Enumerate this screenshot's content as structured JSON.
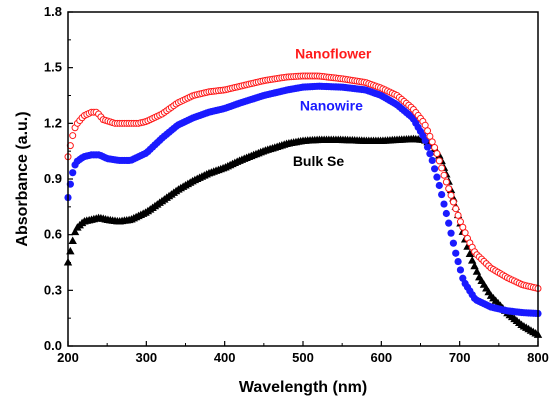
{
  "chart_data": {
    "type": "scatter",
    "title": "",
    "xlabel": "Wavelength (nm)",
    "ylabel": "Absorbance (a.u.)",
    "xlim": [
      200,
      800
    ],
    "ylim": [
      0.0,
      1.8
    ],
    "xticks": [
      "200",
      "300",
      "400",
      "500",
      "600",
      "700",
      "800"
    ],
    "yticks": [
      "0.0",
      "0.3",
      "0.6",
      "0.9",
      "1.2",
      "1.5",
      "1.8"
    ],
    "grid": false,
    "legend": "inline labels",
    "series": [
      {
        "name": "Nanoflower",
        "color": "#ff1a1a",
        "marker": "open-circle",
        "x": [
          200,
          205,
          210,
          220,
          230,
          237,
          245,
          260,
          275,
          290,
          300,
          320,
          340,
          360,
          380,
          400,
          420,
          450,
          480,
          500,
          520,
          550,
          580,
          600,
          620,
          640,
          655,
          670,
          680,
          690,
          700,
          710,
          720,
          740,
          760,
          780,
          800
        ],
        "y": [
          1.02,
          1.12,
          1.19,
          1.24,
          1.26,
          1.26,
          1.22,
          1.2,
          1.2,
          1.2,
          1.21,
          1.25,
          1.31,
          1.35,
          1.37,
          1.38,
          1.4,
          1.43,
          1.45,
          1.455,
          1.455,
          1.44,
          1.42,
          1.39,
          1.35,
          1.28,
          1.2,
          1.05,
          0.92,
          0.8,
          0.68,
          0.58,
          0.5,
          0.42,
          0.37,
          0.33,
          0.31
        ]
      },
      {
        "name": "Nanowire",
        "color": "#1a1aff",
        "marker": "filled-circle",
        "x": [
          200,
          205,
          210,
          220,
          230,
          240,
          250,
          265,
          280,
          300,
          320,
          340,
          360,
          380,
          400,
          420,
          450,
          480,
          500,
          520,
          550,
          580,
          600,
          620,
          640,
          655,
          665,
          675,
          685,
          695,
          705,
          720,
          740,
          760,
          780,
          800
        ],
        "y": [
          0.8,
          0.92,
          0.99,
          1.02,
          1.03,
          1.03,
          1.01,
          1.0,
          1.0,
          1.04,
          1.12,
          1.19,
          1.23,
          1.26,
          1.28,
          1.31,
          1.35,
          1.38,
          1.395,
          1.4,
          1.395,
          1.38,
          1.35,
          1.3,
          1.23,
          1.12,
          1.0,
          0.85,
          0.68,
          0.5,
          0.35,
          0.25,
          0.21,
          0.19,
          0.18,
          0.175
        ]
      },
      {
        "name": "Bulk Se",
        "color": "#000000",
        "marker": "filled-triangle",
        "x": [
          200,
          205,
          210,
          220,
          230,
          240,
          250,
          265,
          280,
          300,
          320,
          340,
          360,
          380,
          400,
          420,
          450,
          480,
          500,
          520,
          550,
          580,
          600,
          620,
          640,
          655,
          665,
          675,
          685,
          695,
          705,
          715,
          725,
          740,
          760,
          780,
          800
        ],
        "y": [
          0.45,
          0.55,
          0.63,
          0.67,
          0.68,
          0.69,
          0.68,
          0.67,
          0.68,
          0.72,
          0.78,
          0.84,
          0.89,
          0.93,
          0.96,
          1.0,
          1.05,
          1.09,
          1.105,
          1.11,
          1.11,
          1.105,
          1.105,
          1.11,
          1.115,
          1.11,
          1.08,
          1.02,
          0.9,
          0.75,
          0.6,
          0.47,
          0.37,
          0.27,
          0.18,
          0.11,
          0.06
        ]
      }
    ]
  }
}
